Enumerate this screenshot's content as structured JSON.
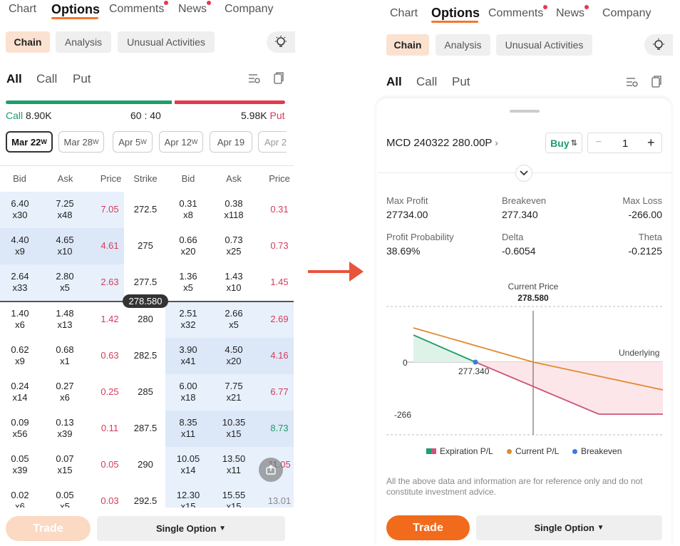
{
  "left": {
    "tabs": [
      "Chart",
      "Options",
      "Comments",
      "News",
      "Company"
    ],
    "subtabs": [
      "Chain",
      "Analysis",
      "Unusual Activities"
    ],
    "filters": [
      "All",
      "Call",
      "Put"
    ],
    "ratio": {
      "call_label": "Call",
      "call_value": "8.90K",
      "ratio": "60 : 40",
      "put_value": "5.98K",
      "put_label": "Put",
      "call_fraction": 0.6
    },
    "expirations": [
      {
        "label": "Mar 22",
        "sup": "W"
      },
      {
        "label": "Mar 28",
        "sup": "W"
      },
      {
        "label": "Apr 5",
        "sup": "W"
      },
      {
        "label": "Apr 12",
        "sup": "W"
      },
      {
        "label": "Apr 19",
        "sup": ""
      },
      {
        "label": "Apr 2",
        "sup": ""
      }
    ],
    "headers": [
      "Bid",
      "Ask",
      "Price",
      "Strike",
      "Bid",
      "Ask",
      "Price"
    ],
    "current_price": "278.580",
    "rows": [
      {
        "cb": "6.40",
        "cbs": "x30",
        "ca": "7.25",
        "cas": "x48",
        "cp": "7.05",
        "k": "272.5",
        "pb": "0.31",
        "pbs": "x8",
        "pa": "0.38",
        "pas": "x118",
        "pp": "0.31"
      },
      {
        "cb": "4.40",
        "cbs": "x9",
        "ca": "4.65",
        "cas": "x10",
        "cp": "4.61",
        "k": "275",
        "pb": "0.66",
        "pbs": "x20",
        "pa": "0.73",
        "pas": "x25",
        "pp": "0.73"
      },
      {
        "cb": "2.64",
        "cbs": "x33",
        "ca": "2.80",
        "cas": "x5",
        "cp": "2.63",
        "k": "277.5",
        "pb": "1.36",
        "pbs": "x5",
        "pa": "1.43",
        "pas": "x10",
        "pp": "1.45"
      },
      {
        "cb": "1.40",
        "cbs": "x6",
        "ca": "1.48",
        "cas": "x13",
        "cp": "1.42",
        "k": "280",
        "pb": "2.51",
        "pbs": "x32",
        "pa": "2.66",
        "pas": "x5",
        "pp": "2.69"
      },
      {
        "cb": "0.62",
        "cbs": "x9",
        "ca": "0.68",
        "cas": "x1",
        "cp": "0.63",
        "k": "282.5",
        "pb": "3.90",
        "pbs": "x41",
        "pa": "4.50",
        "pas": "x20",
        "pp": "4.16"
      },
      {
        "cb": "0.24",
        "cbs": "x14",
        "ca": "0.27",
        "cas": "x6",
        "cp": "0.25",
        "k": "285",
        "pb": "6.00",
        "pbs": "x18",
        "pa": "7.75",
        "pas": "x21",
        "pp": "6.77"
      },
      {
        "cb": "0.09",
        "cbs": "x56",
        "ca": "0.13",
        "cas": "x39",
        "cp": "0.11",
        "k": "287.5",
        "pb": "8.35",
        "pbs": "x11",
        "pa": "10.35",
        "pas": "x15",
        "pp": "8.73"
      },
      {
        "cb": "0.05",
        "cbs": "x39",
        "ca": "0.07",
        "cas": "x15",
        "cp": "0.05",
        "k": "290",
        "pb": "10.05",
        "pbs": "x14",
        "pa": "13.50",
        "pas": "x11",
        "pp": "11.05"
      },
      {
        "cb": "0.02",
        "cbs": "x6",
        "ca": "0.05",
        "cas": "x5",
        "cp": "0.03",
        "k": "292.5",
        "pb": "12.30",
        "pbs": "x15",
        "pa": "15.55",
        "pas": "x15",
        "pp": "13.01"
      }
    ],
    "trade_label": "Trade",
    "single_option_label": "Single Option"
  },
  "right": {
    "tabs": [
      "Chart",
      "Options",
      "Comments",
      "News",
      "Company"
    ],
    "subtabs": [
      "Chain",
      "Analysis",
      "Unusual Activities"
    ],
    "filters": [
      "All",
      "Call",
      "Put"
    ],
    "contract": "MCD 240322 280.00P",
    "side": "Buy",
    "quantity": "1",
    "stats": {
      "max_profit_label": "Max Profit",
      "max_profit": "27734.00",
      "breakeven_label": "Breakeven",
      "breakeven": "277.340",
      "max_loss_label": "Max Loss",
      "max_loss": "-266.00",
      "prob_label": "Profit Probability",
      "prob": "38.69%",
      "delta_label": "Delta",
      "delta": "-0.6054",
      "theta_label": "Theta",
      "theta": "-0.2125"
    },
    "disclaimer": "All the above data and information are for reference only and do not constitute investment advice.",
    "trade_label": "Trade",
    "single_option_label": "Single Option"
  },
  "chart_data": {
    "type": "line",
    "annotations": {
      "current_price_label": "Current Price",
      "current_price": "278.580",
      "underlying_label": "Underlying",
      "breakeven_label": "277.340"
    },
    "y_ticks": [
      "0",
      "-266"
    ],
    "breakeven_x": 277.34,
    "current_x": 278.58,
    "series": [
      {
        "name": "Expiration P/L",
        "color": "#1f9d6b"
      },
      {
        "name": "Current P/L",
        "color": "#e08a2c"
      },
      {
        "name": "Breakeven",
        "color": "#3a7be0"
      }
    ]
  },
  "colors": {
    "accent": "#f2762e",
    "call_green": "#1f9d6b",
    "put_red": "#d63b5b",
    "call_row": "#e7f0fb"
  }
}
